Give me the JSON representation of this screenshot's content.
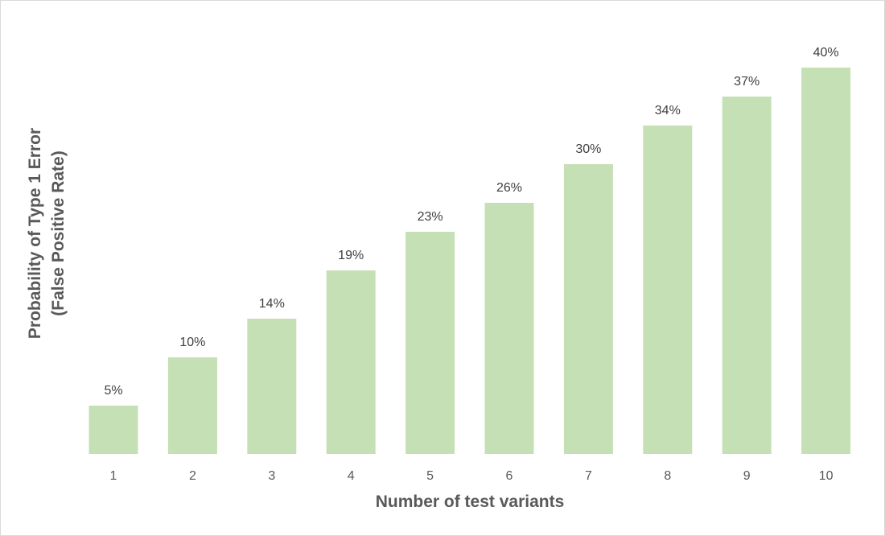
{
  "chart_data": {
    "type": "bar",
    "categories": [
      "1",
      "2",
      "3",
      "4",
      "5",
      "6",
      "7",
      "8",
      "9",
      "10"
    ],
    "values": [
      5,
      10,
      14,
      19,
      23,
      26,
      30,
      34,
      37,
      40
    ],
    "data_labels": [
      "5%",
      "10%",
      "14%",
      "19%",
      "23%",
      "26%",
      "30%",
      "34%",
      "37%",
      "40%"
    ],
    "xlabel": "Number of test variants",
    "ylabel_line1": "Probability of Type 1 Error",
    "ylabel_line2": "(False Positive Rate)",
    "ylim": [
      0,
      40
    ],
    "grid": false,
    "legend": "none",
    "bar_color": "#c5e0b4"
  }
}
